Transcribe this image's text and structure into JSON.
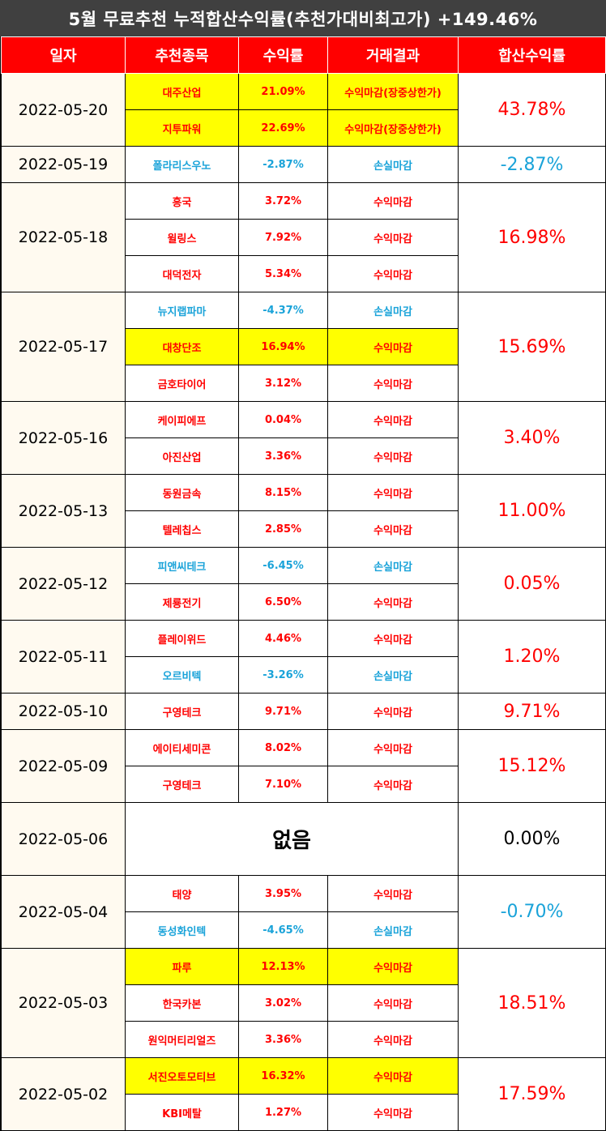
{
  "title": "5월 무료추천 누적합산수익률(추천가대비최고가) +149.46%",
  "headers": [
    "일자",
    "추천종목",
    "수익률",
    "거래결과",
    "합산수익률"
  ],
  "colors": {
    "header_bg": "#ff0000",
    "highlight": "#ffff00",
    "profit": "#ff0000",
    "loss": "#1aa3d9",
    "date_bg": "#fffaf0"
  },
  "groups": [
    {
      "date": "2022-05-20",
      "total": "43.78%",
      "total_color": "red",
      "rows": [
        {
          "stock": "대주산업",
          "ret": "21.09%",
          "result": "수익마감(장중상한가)",
          "color": "red",
          "highlight": true
        },
        {
          "stock": "지투파워",
          "ret": "22.69%",
          "result": "수익마감(장중상한가)",
          "color": "red",
          "highlight": true
        }
      ]
    },
    {
      "date": "2022-05-19",
      "total": "-2.87%",
      "total_color": "blue",
      "rows": [
        {
          "stock": "폴라리스우노",
          "ret": "-2.87%",
          "result": "손실마감",
          "color": "blue",
          "highlight": false
        }
      ]
    },
    {
      "date": "2022-05-18",
      "total": "16.98%",
      "total_color": "red",
      "rows": [
        {
          "stock": "흥국",
          "ret": "3.72%",
          "result": "수익마감",
          "color": "red",
          "highlight": false
        },
        {
          "stock": "윌링스",
          "ret": "7.92%",
          "result": "수익마감",
          "color": "red",
          "highlight": false
        },
        {
          "stock": "대덕전자",
          "ret": "5.34%",
          "result": "수익마감",
          "color": "red",
          "highlight": false
        }
      ]
    },
    {
      "date": "2022-05-17",
      "total": "15.69%",
      "total_color": "red",
      "rows": [
        {
          "stock": "뉴지랩파마",
          "ret": "-4.37%",
          "result": "손실마감",
          "color": "blue",
          "highlight": false
        },
        {
          "stock": "대창단조",
          "ret": "16.94%",
          "result": "수익마감",
          "color": "red",
          "highlight": true
        },
        {
          "stock": "금호타이어",
          "ret": "3.12%",
          "result": "수익마감",
          "color": "red",
          "highlight": false
        }
      ]
    },
    {
      "date": "2022-05-16",
      "total": "3.40%",
      "total_color": "red",
      "rows": [
        {
          "stock": "케이피에프",
          "ret": "0.04%",
          "result": "수익마감",
          "color": "red",
          "highlight": false
        },
        {
          "stock": "아진산업",
          "ret": "3.36%",
          "result": "수익마감",
          "color": "red",
          "highlight": false
        }
      ]
    },
    {
      "date": "2022-05-13",
      "total": "11.00%",
      "total_color": "red",
      "rows": [
        {
          "stock": "동원금속",
          "ret": "8.15%",
          "result": "수익마감",
          "color": "red",
          "highlight": false
        },
        {
          "stock": "텔레칩스",
          "ret": "2.85%",
          "result": "수익마감",
          "color": "red",
          "highlight": false
        }
      ]
    },
    {
      "date": "2022-05-12",
      "total": "0.05%",
      "total_color": "red",
      "rows": [
        {
          "stock": "피앤씨테크",
          "ret": "-6.45%",
          "result": "손실마감",
          "color": "blue",
          "highlight": false
        },
        {
          "stock": "제룡전기",
          "ret": "6.50%",
          "result": "수익마감",
          "color": "red",
          "highlight": false
        }
      ]
    },
    {
      "date": "2022-05-11",
      "total": "1.20%",
      "total_color": "red",
      "rows": [
        {
          "stock": "플레이위드",
          "ret": "4.46%",
          "result": "수익마감",
          "color": "red",
          "highlight": false
        },
        {
          "stock": "오르비텍",
          "ret": "-3.26%",
          "result": "손실마감",
          "color": "blue",
          "highlight": false
        }
      ]
    },
    {
      "date": "2022-05-10",
      "total": "9.71%",
      "total_color": "red",
      "rows": [
        {
          "stock": "구영테크",
          "ret": "9.71%",
          "result": "수익마감",
          "color": "red",
          "highlight": false
        }
      ]
    },
    {
      "date": "2022-05-09",
      "total": "15.12%",
      "total_color": "red",
      "rows": [
        {
          "stock": "에이티세미콘",
          "ret": "8.02%",
          "result": "수익마감",
          "color": "red",
          "highlight": false
        },
        {
          "stock": "구영테크",
          "ret": "7.10%",
          "result": "수익마감",
          "color": "red",
          "highlight": false
        }
      ]
    },
    {
      "date": "2022-05-06",
      "total": "0.00%",
      "total_color": "black",
      "none": "없음",
      "rows": []
    },
    {
      "date": "2022-05-04",
      "total": "-0.70%",
      "total_color": "blue",
      "rows": [
        {
          "stock": "태양",
          "ret": "3.95%",
          "result": "수익마감",
          "color": "red",
          "highlight": false
        },
        {
          "stock": "동성화인텍",
          "ret": "-4.65%",
          "result": "손실마감",
          "color": "blue",
          "highlight": false
        }
      ]
    },
    {
      "date": "2022-05-03",
      "total": "18.51%",
      "total_color": "red",
      "rows": [
        {
          "stock": "파루",
          "ret": "12.13%",
          "result": "수익마감",
          "color": "red",
          "highlight": true
        },
        {
          "stock": "한국카본",
          "ret": "3.02%",
          "result": "수익마감",
          "color": "red",
          "highlight": false
        },
        {
          "stock": "원익머티리얼즈",
          "ret": "3.36%",
          "result": "수익마감",
          "color": "red",
          "highlight": false
        }
      ]
    },
    {
      "date": "2022-05-02",
      "total": "17.59%",
      "total_color": "red",
      "rows": [
        {
          "stock": "서진오토모티브",
          "ret": "16.32%",
          "result": "수익마감",
          "color": "red",
          "highlight": true
        },
        {
          "stock": "KBI메탈",
          "ret": "1.27%",
          "result": "수익마감",
          "color": "red",
          "highlight": false
        }
      ]
    }
  ]
}
